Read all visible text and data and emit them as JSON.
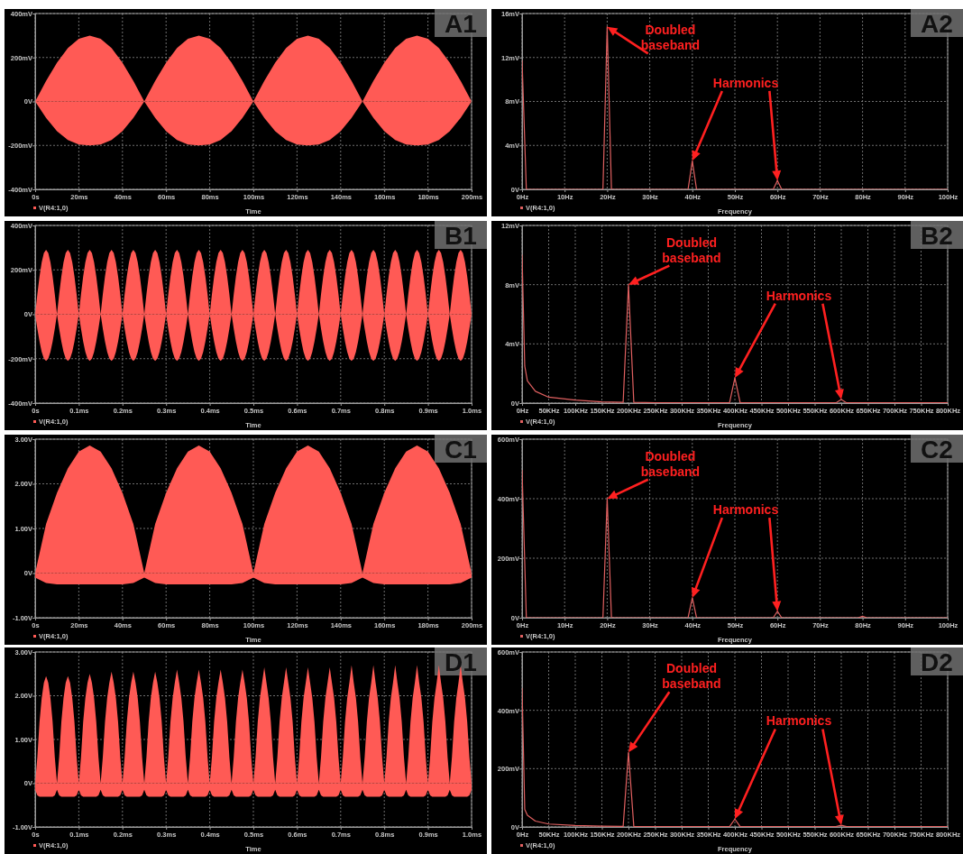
{
  "chart_data": [
    {
      "type": "area",
      "xlabel": "Time",
      "xlim": [
        0,
        200
      ],
      "xticks": [
        {
          "value": 0,
          "label": "0s"
        },
        {
          "value": 20,
          "label": "20ms"
        },
        {
          "value": 40,
          "label": "40ms"
        },
        {
          "value": 60,
          "label": "60ms"
        },
        {
          "value": 80,
          "label": "80ms"
        },
        {
          "value": 100,
          "label": "100ms"
        },
        {
          "value": 120,
          "label": "120ms"
        },
        {
          "value": 140,
          "label": "140ms"
        },
        {
          "value": 160,
          "label": "160ms"
        },
        {
          "value": 180,
          "label": "180ms"
        },
        {
          "value": 200,
          "label": "200ms"
        }
      ],
      "ylim": [
        -400,
        400
      ],
      "yticks": [
        {
          "value": -400,
          "label": "-400mV"
        },
        {
          "value": -200,
          "label": "-200mV"
        },
        {
          "value": 0,
          "label": "0V"
        },
        {
          "value": 200,
          "label": "200mV"
        },
        {
          "value": 400,
          "label": "400mV"
        }
      ],
      "grid": true,
      "legend": "bottom left",
      "x": [
        0,
        5,
        10,
        15,
        20,
        25,
        30,
        35,
        40,
        45,
        50,
        55,
        60,
        65,
        70,
        75,
        80,
        85,
        90,
        95,
        100,
        105,
        110,
        115,
        120,
        125,
        130,
        135,
        140,
        145,
        150,
        155,
        160,
        165,
        170,
        175,
        180,
        185,
        190,
        195,
        200
      ],
      "series": [
        {
          "name": "V(R4:1,0)",
          "color": "#ff5a55",
          "values": [
            0,
            93,
            176,
            243,
            285,
            300,
            285,
            243,
            176,
            93,
            0,
            93,
            176,
            243,
            285,
            300,
            285,
            243,
            176,
            93,
            0,
            93,
            176,
            243,
            285,
            300,
            285,
            243,
            176,
            93,
            0,
            93,
            176,
            243,
            285,
            300,
            285,
            243,
            176,
            93,
            0
          ]
        },
        {
          "color": "#ff5a55",
          "values": [
            0,
            -75,
            -135,
            -175,
            -196,
            -200,
            -196,
            -175,
            -135,
            -75,
            0,
            -75,
            -135,
            -175,
            -196,
            -200,
            -196,
            -175,
            -135,
            -75,
            0,
            -75,
            -135,
            -175,
            -196,
            -200,
            -196,
            -175,
            -135,
            -75,
            0,
            -75,
            -135,
            -175,
            -196,
            -200,
            -196,
            -175,
            -135,
            -75,
            0
          ]
        }
      ],
      "annotations": [
        "A1"
      ]
    },
    {
      "type": "line",
      "xlabel": "Frequency",
      "xlim": [
        0,
        100
      ],
      "xticks": [
        {
          "value": 0,
          "label": "0Hz"
        },
        {
          "value": 10,
          "label": "10Hz"
        },
        {
          "value": 20,
          "label": "20Hz"
        },
        {
          "value": 30,
          "label": "30Hz"
        },
        {
          "value": 40,
          "label": "40Hz"
        },
        {
          "value": 50,
          "label": "50Hz"
        },
        {
          "value": 60,
          "label": "60Hz"
        },
        {
          "value": 70,
          "label": "70Hz"
        },
        {
          "value": 80,
          "label": "80Hz"
        },
        {
          "value": 90,
          "label": "90Hz"
        },
        {
          "value": 100,
          "label": "100Hz"
        }
      ],
      "ylim": [
        0,
        16
      ],
      "yticks": [
        {
          "value": 0,
          "label": "0V"
        },
        {
          "value": 4,
          "label": "4mV"
        },
        {
          "value": 8,
          "label": "8mV"
        },
        {
          "value": 12,
          "label": "12mV"
        },
        {
          "value": 16,
          "label": "16mV"
        }
      ],
      "grid": true,
      "legend": "bottom left",
      "series": [
        {
          "name": "V(R4:1,0)",
          "color": "#e06060",
          "x": [
            0,
            1,
            19,
            20,
            21,
            39,
            40,
            41,
            59,
            60,
            61,
            100
          ],
          "values": [
            11.7,
            0,
            0,
            14.8,
            0,
            0,
            2.6,
            0,
            0,
            0.8,
            0,
            0
          ]
        }
      ],
      "annotations": [
        "Doubled baseband",
        "Harmonics",
        "A2"
      ]
    },
    {
      "type": "area",
      "xlabel": "Time",
      "xlim": [
        0,
        1
      ],
      "xticks": [
        {
          "value": 0,
          "label": "0s"
        },
        {
          "value": 0.1,
          "label": "0.1ms"
        },
        {
          "value": 0.2,
          "label": "0.2ms"
        },
        {
          "value": 0.3,
          "label": "0.3ms"
        },
        {
          "value": 0.4,
          "label": "0.4ms"
        },
        {
          "value": 0.5,
          "label": "0.5ms"
        },
        {
          "value": 0.6,
          "label": "0.6ms"
        },
        {
          "value": 0.7,
          "label": "0.7ms"
        },
        {
          "value": 0.8,
          "label": "0.8ms"
        },
        {
          "value": 0.9,
          "label": "0.9ms"
        },
        {
          "value": 1,
          "label": "1.0ms"
        }
      ],
      "ylim": [
        -400,
        400
      ],
      "yticks": [
        {
          "value": -400,
          "label": "-400mV"
        },
        {
          "value": -200,
          "label": "-200mV"
        },
        {
          "value": 0,
          "label": "0V"
        },
        {
          "value": 200,
          "label": "200mV"
        },
        {
          "value": 400,
          "label": "400mV"
        }
      ],
      "grid": true,
      "legend": "bottom left",
      "x": [
        0,
        0.005,
        0.01,
        0.015,
        0.02,
        0.025,
        0.03,
        0.035,
        0.04,
        0.045,
        0.05,
        0.055,
        0.06,
        0.065,
        0.07,
        0.075,
        0.08,
        0.085,
        0.09,
        0.095,
        0.1,
        0.105,
        0.11,
        0.115,
        0.12,
        0.125,
        0.13,
        0.135,
        0.14,
        0.145,
        0.15,
        0.155,
        0.16,
        0.165,
        0.17,
        0.175,
        0.18,
        0.185,
        0.19,
        0.195,
        0.2,
        0.205,
        0.21,
        0.215,
        0.22,
        0.225,
        0.23,
        0.235,
        0.24,
        0.245,
        0.25,
        0.255,
        0.26,
        0.265,
        0.27,
        0.275,
        0.28,
        0.285,
        0.29,
        0.295,
        0.3,
        0.305,
        0.31,
        0.315,
        0.32,
        0.325,
        0.33,
        0.335,
        0.34,
        0.345,
        0.35,
        0.355,
        0.36,
        0.365,
        0.37,
        0.375,
        0.38,
        0.385,
        0.39,
        0.395,
        0.4,
        0.405,
        0.41,
        0.415,
        0.42,
        0.425,
        0.43,
        0.435,
        0.44,
        0.445,
        0.45,
        0.455,
        0.46,
        0.465,
        0.47,
        0.475,
        0.48,
        0.485,
        0.49,
        0.495,
        0.5,
        0.505,
        0.51,
        0.515,
        0.52,
        0.525,
        0.53,
        0.535,
        0.54,
        0.545,
        0.55,
        0.555,
        0.56,
        0.565,
        0.57,
        0.575,
        0.58,
        0.585,
        0.59,
        0.595,
        0.6,
        0.605,
        0.61,
        0.615,
        0.62,
        0.625,
        0.63,
        0.635,
        0.64,
        0.645,
        0.65,
        0.655,
        0.66,
        0.665,
        0.67,
        0.675,
        0.68,
        0.685,
        0.69,
        0.695,
        0.7,
        0.705,
        0.71,
        0.715,
        0.72,
        0.725,
        0.73,
        0.735,
        0.74,
        0.745,
        0.75,
        0.755,
        0.76,
        0.765,
        0.77,
        0.775,
        0.78,
        0.785,
        0.79,
        0.795,
        0.8,
        0.805,
        0.81,
        0.815,
        0.82,
        0.825,
        0.83,
        0.835,
        0.84,
        0.845,
        0.85,
        0.855,
        0.86,
        0.865,
        0.87,
        0.875,
        0.88,
        0.885,
        0.89,
        0.895,
        0.9,
        0.905,
        0.91,
        0.915,
        0.92,
        0.925,
        0.93,
        0.935,
        0.94,
        0.945,
        0.95,
        0.955,
        0.96,
        0.965,
        0.97,
        0.975,
        0.98,
        0.985,
        0.99,
        0.995,
        1
      ],
      "series": [
        {
          "name": "V(R4:1,0)",
          "color": "#ff5a55",
          "values": [
            0,
            90,
            171,
            235,
            276,
            290,
            276,
            235,
            171,
            90,
            0,
            90,
            171,
            235,
            276,
            290,
            276,
            235,
            171,
            90,
            0,
            90,
            171,
            235,
            276,
            290,
            276,
            235,
            171,
            90,
            0,
            90,
            171,
            235,
            276,
            290,
            276,
            235,
            171,
            90,
            0,
            90,
            171,
            235,
            276,
            290,
            276,
            235,
            171,
            90,
            0,
            90,
            171,
            235,
            276,
            290,
            276,
            235,
            171,
            90,
            0,
            90,
            171,
            235,
            276,
            290,
            276,
            235,
            171,
            90,
            0,
            90,
            171,
            235,
            276,
            290,
            276,
            235,
            171,
            90,
            0,
            90,
            171,
            235,
            276,
            290,
            276,
            235,
            171,
            90,
            0,
            90,
            171,
            235,
            276,
            290,
            276,
            235,
            171,
            90,
            0,
            90,
            171,
            235,
            276,
            290,
            276,
            235,
            171,
            90,
            0,
            90,
            171,
            235,
            276,
            290,
            276,
            235,
            171,
            90,
            0,
            90,
            171,
            235,
            276,
            290,
            276,
            235,
            171,
            90,
            0,
            90,
            171,
            235,
            276,
            290,
            276,
            235,
            171,
            90,
            0,
            90,
            171,
            235,
            276,
            290,
            276,
            235,
            171,
            90,
            0,
            90,
            171,
            235,
            276,
            290,
            276,
            235,
            171,
            90,
            0,
            90,
            171,
            235,
            276,
            290,
            276,
            235,
            171,
            90,
            0,
            90,
            171,
            235,
            276,
            290,
            276,
            235,
            171,
            90,
            0,
            90,
            171,
            235,
            276,
            290,
            276,
            235,
            171,
            90,
            0,
            90,
            171,
            235,
            276,
            290,
            276,
            235,
            171,
            90,
            0
          ]
        },
        {
          "color": "#ff5a55",
          "values": [
            0,
            -65,
            -123,
            -170,
            -200,
            -210,
            -200,
            -170,
            -123,
            -65,
            0,
            -65,
            -123,
            -170,
            -200,
            -210,
            -200,
            -170,
            -123,
            -65,
            0,
            -65,
            -123,
            -170,
            -200,
            -210,
            -200,
            -170,
            -123,
            -65,
            0,
            -65,
            -123,
            -170,
            -200,
            -210,
            -200,
            -170,
            -123,
            -65,
            0,
            -65,
            -123,
            -170,
            -200,
            -210,
            -200,
            -170,
            -123,
            -65,
            0,
            -65,
            -123,
            -170,
            -200,
            -210,
            -200,
            -170,
            -123,
            -65,
            0,
            -65,
            -123,
            -170,
            -200,
            -210,
            -200,
            -170,
            -123,
            -65,
            0,
            -65,
            -123,
            -170,
            -200,
            -210,
            -200,
            -170,
            -123,
            -65,
            0,
            -65,
            -123,
            -170,
            -200,
            -210,
            -200,
            -170,
            -123,
            -65,
            0,
            -65,
            -123,
            -170,
            -200,
            -210,
            -200,
            -170,
            -123,
            -65,
            0,
            -65,
            -123,
            -170,
            -200,
            -210,
            -200,
            -170,
            -123,
            -65,
            0,
            -65,
            -123,
            -170,
            -200,
            -210,
            -200,
            -170,
            -123,
            -65,
            0,
            -65,
            -123,
            -170,
            -200,
            -210,
            -200,
            -170,
            -123,
            -65,
            0,
            -65,
            -123,
            -170,
            -200,
            -210,
            -200,
            -170,
            -123,
            -65,
            0,
            -65,
            -123,
            -170,
            -200,
            -210,
            -200,
            -170,
            -123,
            -65,
            0,
            -65,
            -123,
            -170,
            -200,
            -210,
            -200,
            -170,
            -123,
            -65,
            0,
            -65,
            -123,
            -170,
            -200,
            -210,
            -200,
            -170,
            -123,
            -65,
            0,
            -65,
            -123,
            -170,
            -200,
            -210,
            -200,
            -170,
            -123,
            -65,
            0,
            -65,
            -123,
            -170,
            -200,
            -210,
            -200,
            -170,
            -123,
            -65,
            0,
            -65,
            -123,
            -170,
            -200,
            -210,
            -200,
            -170,
            -123,
            -65,
            0
          ]
        }
      ],
      "annotations": [
        "B1"
      ]
    },
    {
      "type": "line",
      "xlabel": "Frequency",
      "xlim": [
        0,
        800
      ],
      "xticks": [
        {
          "value": 0,
          "label": "0Hz"
        },
        {
          "value": 50,
          "label": "50KHz"
        },
        {
          "value": 100,
          "label": "100KHz"
        },
        {
          "value": 150,
          "label": "150KHz"
        },
        {
          "value": 200,
          "label": "200KHz"
        },
        {
          "value": 250,
          "label": "250KHz"
        },
        {
          "value": 300,
          "label": "300KHz"
        },
        {
          "value": 350,
          "label": "350KHz"
        },
        {
          "value": 400,
          "label": "400KHz"
        },
        {
          "value": 450,
          "label": "450KHz"
        },
        {
          "value": 500,
          "label": "500KHz"
        },
        {
          "value": 550,
          "label": "550KHz"
        },
        {
          "value": 600,
          "label": "600KHz"
        },
        {
          "value": 650,
          "label": "650KHz"
        },
        {
          "value": 700,
          "label": "700KHz"
        },
        {
          "value": 750,
          "label": "750KHz"
        },
        {
          "value": 800,
          "label": "800KHz"
        }
      ],
      "ylim": [
        0,
        12
      ],
      "yticks": [
        {
          "value": 0,
          "label": "0V"
        },
        {
          "value": 4,
          "label": "4mV"
        },
        {
          "value": 8,
          "label": "8mV"
        },
        {
          "value": 12,
          "label": "12mV"
        }
      ],
      "grid": true,
      "legend": "bottom left",
      "series": [
        {
          "name": "V(R4:1,0)",
          "color": "#e06060",
          "x": [
            0,
            5,
            10,
            25,
            50,
            100,
            150,
            190,
            200,
            210,
            250,
            390,
            400,
            410,
            500,
            590,
            600,
            610,
            800
          ],
          "values": [
            10,
            2.5,
            1.5,
            0.8,
            0.4,
            0.2,
            0.08,
            0.05,
            8,
            0.05,
            0.03,
            0.02,
            1.7,
            0.02,
            0.02,
            0.02,
            0.25,
            0.02,
            0.02
          ]
        }
      ],
      "annotations": [
        "Doubled baseband",
        "Harmonics",
        "B2"
      ]
    },
    {
      "type": "area",
      "xlabel": "Time",
      "xlim": [
        0,
        200
      ],
      "xticks": [
        {
          "value": 0,
          "label": "0s"
        },
        {
          "value": 20,
          "label": "20ms"
        },
        {
          "value": 40,
          "label": "40ms"
        },
        {
          "value": 60,
          "label": "60ms"
        },
        {
          "value": 80,
          "label": "80ms"
        },
        {
          "value": 100,
          "label": "100ms"
        },
        {
          "value": 120,
          "label": "120ms"
        },
        {
          "value": 140,
          "label": "140ms"
        },
        {
          "value": 160,
          "label": "160ms"
        },
        {
          "value": 180,
          "label": "180ms"
        },
        {
          "value": 200,
          "label": "200ms"
        }
      ],
      "ylim": [
        -1,
        3
      ],
      "yticks": [
        {
          "value": -1,
          "label": "-1.00V"
        },
        {
          "value": 0,
          "label": "0V"
        },
        {
          "value": 1,
          "label": "1.00V"
        },
        {
          "value": 2,
          "label": "2.00V"
        },
        {
          "value": 3,
          "label": "3.00V"
        }
      ],
      "grid": true,
      "legend": "bottom left",
      "x": [
        0,
        5,
        10,
        15,
        20,
        25,
        30,
        35,
        40,
        45,
        50,
        55,
        60,
        65,
        70,
        75,
        80,
        85,
        90,
        95,
        100,
        105,
        110,
        115,
        120,
        125,
        130,
        135,
        140,
        145,
        150,
        155,
        160,
        165,
        170,
        175,
        180,
        185,
        190,
        195,
        200
      ],
      "series": [
        {
          "name": "V(R4:1,0)",
          "color": "#ff5a55",
          "values": [
            0,
            1.1,
            1.8,
            2.35,
            2.72,
            2.86,
            2.72,
            2.35,
            1.8,
            1.1,
            0,
            1.1,
            1.8,
            2.35,
            2.72,
            2.86,
            2.72,
            2.35,
            1.8,
            1.1,
            0,
            1.1,
            1.8,
            2.35,
            2.72,
            2.86,
            2.72,
            2.35,
            1.8,
            1.1,
            0,
            1.1,
            1.8,
            2.35,
            2.72,
            2.86,
            2.72,
            2.35,
            1.8,
            1.1,
            0
          ]
        },
        {
          "color": "#ff5a55",
          "values": [
            -0.1,
            -0.22,
            -0.25,
            -0.25,
            -0.25,
            -0.25,
            -0.25,
            -0.25,
            -0.25,
            -0.22,
            -0.1,
            -0.22,
            -0.25,
            -0.25,
            -0.25,
            -0.25,
            -0.25,
            -0.25,
            -0.25,
            -0.22,
            -0.1,
            -0.22,
            -0.25,
            -0.25,
            -0.25,
            -0.25,
            -0.25,
            -0.25,
            -0.25,
            -0.22,
            -0.1,
            -0.22,
            -0.25,
            -0.25,
            -0.25,
            -0.25,
            -0.25,
            -0.25,
            -0.25,
            -0.22,
            -0.1
          ]
        }
      ],
      "annotations": [
        "C1"
      ]
    },
    {
      "type": "line",
      "xlabel": "Frequency",
      "xlim": [
        0,
        100
      ],
      "xticks": [
        {
          "value": 0,
          "label": "0Hz"
        },
        {
          "value": 10,
          "label": "10Hz"
        },
        {
          "value": 20,
          "label": "20Hz"
        },
        {
          "value": 30,
          "label": "30Hz"
        },
        {
          "value": 40,
          "label": "40Hz"
        },
        {
          "value": 50,
          "label": "50Hz"
        },
        {
          "value": 60,
          "label": "60Hz"
        },
        {
          "value": 70,
          "label": "70Hz"
        },
        {
          "value": 80,
          "label": "80Hz"
        },
        {
          "value": 90,
          "label": "90Hz"
        },
        {
          "value": 100,
          "label": "100Hz"
        }
      ],
      "ylim": [
        0,
        600
      ],
      "yticks": [
        {
          "value": 0,
          "label": "0V"
        },
        {
          "value": 200,
          "label": "200mV"
        },
        {
          "value": 400,
          "label": "400mV"
        },
        {
          "value": 600,
          "label": "600mV"
        }
      ],
      "grid": true,
      "legend": "bottom left",
      "series": [
        {
          "name": "V(R4:1,0)",
          "color": "#e06060",
          "x": [
            0,
            1,
            19,
            20,
            21,
            39,
            40,
            41,
            59,
            60,
            61,
            79,
            80,
            81,
            100
          ],
          "values": [
            495,
            0,
            0,
            400,
            0,
            0,
            67,
            0,
            0,
            22,
            0,
            0,
            5,
            0,
            0
          ]
        }
      ],
      "annotations": [
        "Doubled baseband",
        "Harmonics",
        "C2"
      ]
    },
    {
      "type": "area",
      "xlabel": "Time",
      "xlim": [
        0,
        1
      ],
      "xticks": [
        {
          "value": 0,
          "label": "0s"
        },
        {
          "value": 0.1,
          "label": "0.1ms"
        },
        {
          "value": 0.2,
          "label": "0.2ms"
        },
        {
          "value": 0.3,
          "label": "0.3ms"
        },
        {
          "value": 0.4,
          "label": "0.4ms"
        },
        {
          "value": 0.5,
          "label": "0.5ms"
        },
        {
          "value": 0.6,
          "label": "0.6ms"
        },
        {
          "value": 0.7,
          "label": "0.7ms"
        },
        {
          "value": 0.8,
          "label": "0.8ms"
        },
        {
          "value": 0.9,
          "label": "0.9ms"
        },
        {
          "value": 1,
          "label": "1.0ms"
        }
      ],
      "ylim": [
        -1,
        3
      ],
      "yticks": [
        {
          "value": -1,
          "label": "-1.00V"
        },
        {
          "value": 0,
          "label": "0V"
        },
        {
          "value": 1,
          "label": "1.00V"
        },
        {
          "value": 2,
          "label": "2.00V"
        },
        {
          "value": 3,
          "label": "3.00V"
        }
      ],
      "grid": true,
      "legend": "bottom left",
      "x": [
        0,
        0.005,
        0.01,
        0.015,
        0.02,
        0.025,
        0.03,
        0.035,
        0.04,
        0.045,
        0.05,
        0.055,
        0.06,
        0.065,
        0.07,
        0.075,
        0.08,
        0.085,
        0.09,
        0.095,
        0.1,
        0.105,
        0.11,
        0.115,
        0.12,
        0.125,
        0.13,
        0.135,
        0.14,
        0.145,
        0.15,
        0.155,
        0.16,
        0.165,
        0.17,
        0.175,
        0.18,
        0.185,
        0.19,
        0.195,
        0.2,
        0.205,
        0.21,
        0.215,
        0.22,
        0.225,
        0.23,
        0.235,
        0.24,
        0.245,
        0.25,
        0.255,
        0.26,
        0.265,
        0.27,
        0.275,
        0.28,
        0.285,
        0.29,
        0.295,
        0.3,
        0.305,
        0.31,
        0.315,
        0.32,
        0.325,
        0.33,
        0.335,
        0.34,
        0.345,
        0.35,
        0.355,
        0.36,
        0.365,
        0.37,
        0.375,
        0.38,
        0.385,
        0.39,
        0.395,
        0.4,
        0.405,
        0.41,
        0.415,
        0.42,
        0.425,
        0.43,
        0.435,
        0.44,
        0.445,
        0.45,
        0.455,
        0.46,
        0.465,
        0.47,
        0.475,
        0.48,
        0.485,
        0.49,
        0.495,
        0.5,
        0.505,
        0.51,
        0.515,
        0.52,
        0.525,
        0.53,
        0.535,
        0.54,
        0.545,
        0.55,
        0.555,
        0.56,
        0.565,
        0.57,
        0.575,
        0.58,
        0.585,
        0.59,
        0.595,
        0.6,
        0.605,
        0.61,
        0.615,
        0.62,
        0.625,
        0.63,
        0.635,
        0.64,
        0.645,
        0.65,
        0.655,
        0.66,
        0.665,
        0.67,
        0.675,
        0.68,
        0.685,
        0.69,
        0.695,
        0.7,
        0.705,
        0.71,
        0.715,
        0.72,
        0.725,
        0.73,
        0.735,
        0.74,
        0.745,
        0.75,
        0.755,
        0.76,
        0.765,
        0.77,
        0.775,
        0.78,
        0.785,
        0.79,
        0.795,
        0.8,
        0.805,
        0.81,
        0.815,
        0.82,
        0.825,
        0.83,
        0.835,
        0.84,
        0.845,
        0.85,
        0.855,
        0.86,
        0.865,
        0.87,
        0.875,
        0.88,
        0.885,
        0.89,
        0.895,
        0.9,
        0.905,
        0.91,
        0.915,
        0.92,
        0.925,
        0.93,
        0.935,
        0.94,
        0.945,
        0.95,
        0.955,
        0.96,
        0.965,
        0.97,
        0.975,
        0.98,
        0.985,
        0.99,
        0.995,
        1
      ],
      "series": [
        {
          "name": "V(R4:1,0)",
          "color": "#ff5a55",
          "values": [
            0,
            0.6,
            1.4,
            1.95,
            2.3,
            2.45,
            2.3,
            1.95,
            1.4,
            0.6,
            0,
            0.6,
            1.4,
            1.95,
            2.3,
            2.45,
            2.3,
            1.95,
            1.4,
            0.6,
            0,
            0.6,
            1.4,
            1.95,
            2.3,
            2.5,
            2.3,
            1.95,
            1.4,
            0.6,
            0,
            0.6,
            1.4,
            1.95,
            2.3,
            2.55,
            2.3,
            1.95,
            1.4,
            0.6,
            0,
            0.6,
            1.4,
            1.95,
            2.3,
            2.55,
            2.3,
            1.95,
            1.4,
            0.6,
            0,
            0.6,
            1.4,
            1.95,
            2.3,
            2.55,
            2.3,
            1.95,
            1.4,
            0.6,
            0,
            0.6,
            1.4,
            1.95,
            2.3,
            2.6,
            2.3,
            1.95,
            1.4,
            0.6,
            0,
            0.6,
            1.4,
            1.95,
            2.3,
            2.6,
            2.3,
            1.95,
            1.4,
            0.6,
            0,
            0.6,
            1.4,
            1.95,
            2.3,
            2.6,
            2.3,
            1.95,
            1.4,
            0.6,
            0,
            0.6,
            1.4,
            1.95,
            2.3,
            2.6,
            2.3,
            1.95,
            1.4,
            0.6,
            0,
            0.6,
            1.4,
            1.95,
            2.3,
            2.65,
            2.3,
            1.95,
            1.4,
            0.6,
            0,
            0.6,
            1.4,
            1.95,
            2.3,
            2.65,
            2.3,
            1.95,
            1.4,
            0.6,
            0,
            0.6,
            1.4,
            1.95,
            2.3,
            2.65,
            2.3,
            1.95,
            1.4,
            0.6,
            0,
            0.6,
            1.4,
            1.95,
            2.3,
            2.65,
            2.3,
            1.95,
            1.4,
            0.6,
            0,
            0.6,
            1.4,
            1.95,
            2.3,
            2.7,
            2.3,
            1.95,
            1.4,
            0.6,
            0,
            0.6,
            1.4,
            1.95,
            2.3,
            2.7,
            2.3,
            1.95,
            1.4,
            0.6,
            0,
            0.6,
            1.4,
            1.95,
            2.3,
            2.7,
            2.3,
            1.95,
            1.4,
            0.6,
            0,
            0.6,
            1.4,
            1.95,
            2.3,
            2.7,
            2.3,
            1.95,
            1.4,
            0.6,
            0,
            0.6,
            1.4,
            1.95,
            2.3,
            2.7,
            2.3,
            1.95,
            1.4,
            0.6,
            0,
            0.6,
            1.4,
            1.95,
            2.3,
            2.7,
            2.3,
            1.95,
            1.4,
            0.6,
            0
          ]
        },
        {
          "color": "#ff5a55",
          "values": [
            -0.15,
            -0.28,
            -0.31,
            -0.31,
            -0.31,
            -0.31,
            -0.31,
            -0.31,
            -0.31,
            -0.28,
            -0.15,
            -0.28,
            -0.31,
            -0.31,
            -0.31,
            -0.31,
            -0.31,
            -0.31,
            -0.31,
            -0.28,
            -0.15,
            -0.28,
            -0.31,
            -0.31,
            -0.31,
            -0.31,
            -0.31,
            -0.31,
            -0.31,
            -0.28,
            -0.15,
            -0.28,
            -0.31,
            -0.31,
            -0.31,
            -0.31,
            -0.31,
            -0.31,
            -0.31,
            -0.28,
            -0.15,
            -0.28,
            -0.31,
            -0.31,
            -0.31,
            -0.31,
            -0.31,
            -0.31,
            -0.31,
            -0.28,
            -0.15,
            -0.28,
            -0.31,
            -0.31,
            -0.31,
            -0.31,
            -0.31,
            -0.31,
            -0.31,
            -0.28,
            -0.15,
            -0.28,
            -0.31,
            -0.31,
            -0.31,
            -0.31,
            -0.31,
            -0.31,
            -0.31,
            -0.28,
            -0.15,
            -0.28,
            -0.31,
            -0.31,
            -0.31,
            -0.31,
            -0.31,
            -0.31,
            -0.31,
            -0.28,
            -0.15,
            -0.28,
            -0.31,
            -0.31,
            -0.31,
            -0.31,
            -0.31,
            -0.31,
            -0.31,
            -0.28,
            -0.15,
            -0.28,
            -0.31,
            -0.31,
            -0.31,
            -0.31,
            -0.31,
            -0.31,
            -0.31,
            -0.28,
            -0.15,
            -0.28,
            -0.31,
            -0.31,
            -0.31,
            -0.31,
            -0.31,
            -0.31,
            -0.31,
            -0.28,
            -0.15,
            -0.28,
            -0.31,
            -0.31,
            -0.31,
            -0.31,
            -0.31,
            -0.31,
            -0.31,
            -0.28,
            -0.15,
            -0.28,
            -0.31,
            -0.31,
            -0.31,
            -0.31,
            -0.31,
            -0.31,
            -0.31,
            -0.28,
            -0.15,
            -0.28,
            -0.31,
            -0.31,
            -0.31,
            -0.31,
            -0.31,
            -0.31,
            -0.31,
            -0.28,
            -0.15,
            -0.28,
            -0.31,
            -0.31,
            -0.31,
            -0.31,
            -0.31,
            -0.31,
            -0.31,
            -0.28,
            -0.15,
            -0.28,
            -0.31,
            -0.31,
            -0.31,
            -0.31,
            -0.31,
            -0.31,
            -0.31,
            -0.28,
            -0.15,
            -0.28,
            -0.31,
            -0.31,
            -0.31,
            -0.31,
            -0.31,
            -0.31,
            -0.31,
            -0.28,
            -0.15,
            -0.28,
            -0.31,
            -0.31,
            -0.31,
            -0.31,
            -0.31,
            -0.31,
            -0.31,
            -0.28,
            -0.15,
            -0.28,
            -0.31,
            -0.31,
            -0.31,
            -0.31,
            -0.31,
            -0.31,
            -0.31,
            -0.28,
            -0.15,
            -0.28,
            -0.31,
            -0.31,
            -0.31,
            -0.31,
            -0.31,
            -0.31,
            -0.31,
            -0.28,
            -0.15
          ]
        }
      ],
      "annotations": [
        "D1"
      ]
    },
    {
      "type": "line",
      "xlabel": "Frequency",
      "xlim": [
        0,
        800
      ],
      "xticks": [
        {
          "value": 0,
          "label": "0Hz"
        },
        {
          "value": 50,
          "label": "50KHz"
        },
        {
          "value": 100,
          "label": "100KHz"
        },
        {
          "value": 150,
          "label": "150KHz"
        },
        {
          "value": 200,
          "label": "200KHz"
        },
        {
          "value": 250,
          "label": "250KHz"
        },
        {
          "value": 300,
          "label": "300KHz"
        },
        {
          "value": 350,
          "label": "350KHz"
        },
        {
          "value": 400,
          "label": "400KHz"
        },
        {
          "value": 450,
          "label": "450KHz"
        },
        {
          "value": 500,
          "label": "500KHz"
        },
        {
          "value": 550,
          "label": "550KHz"
        },
        {
          "value": 600,
          "label": "600KHz"
        },
        {
          "value": 650,
          "label": "650KHz"
        },
        {
          "value": 700,
          "label": "700KHz"
        },
        {
          "value": 750,
          "label": "750KHz"
        },
        {
          "value": 800,
          "label": "800KHz"
        }
      ],
      "ylim": [
        0,
        600
      ],
      "yticks": [
        {
          "value": 0,
          "label": "0V"
        },
        {
          "value": 200,
          "label": "200mV"
        },
        {
          "value": 400,
          "label": "400mV"
        },
        {
          "value": 600,
          "label": "600mV"
        }
      ],
      "grid": true,
      "legend": "bottom left",
      "series": [
        {
          "name": "V(R4:1,0)",
          "color": "#e06060",
          "x": [
            0,
            5,
            10,
            25,
            50,
            100,
            150,
            190,
            200,
            210,
            250,
            390,
            400,
            410,
            500,
            590,
            600,
            610,
            800
          ],
          "values": [
            475,
            60,
            40,
            20,
            10,
            5,
            3,
            2,
            256,
            2,
            1,
            1,
            27,
            1,
            1,
            1,
            6,
            1,
            1
          ]
        }
      ],
      "annotations": [
        "Doubled baseband",
        "Harmonics",
        "D2"
      ]
    }
  ]
}
